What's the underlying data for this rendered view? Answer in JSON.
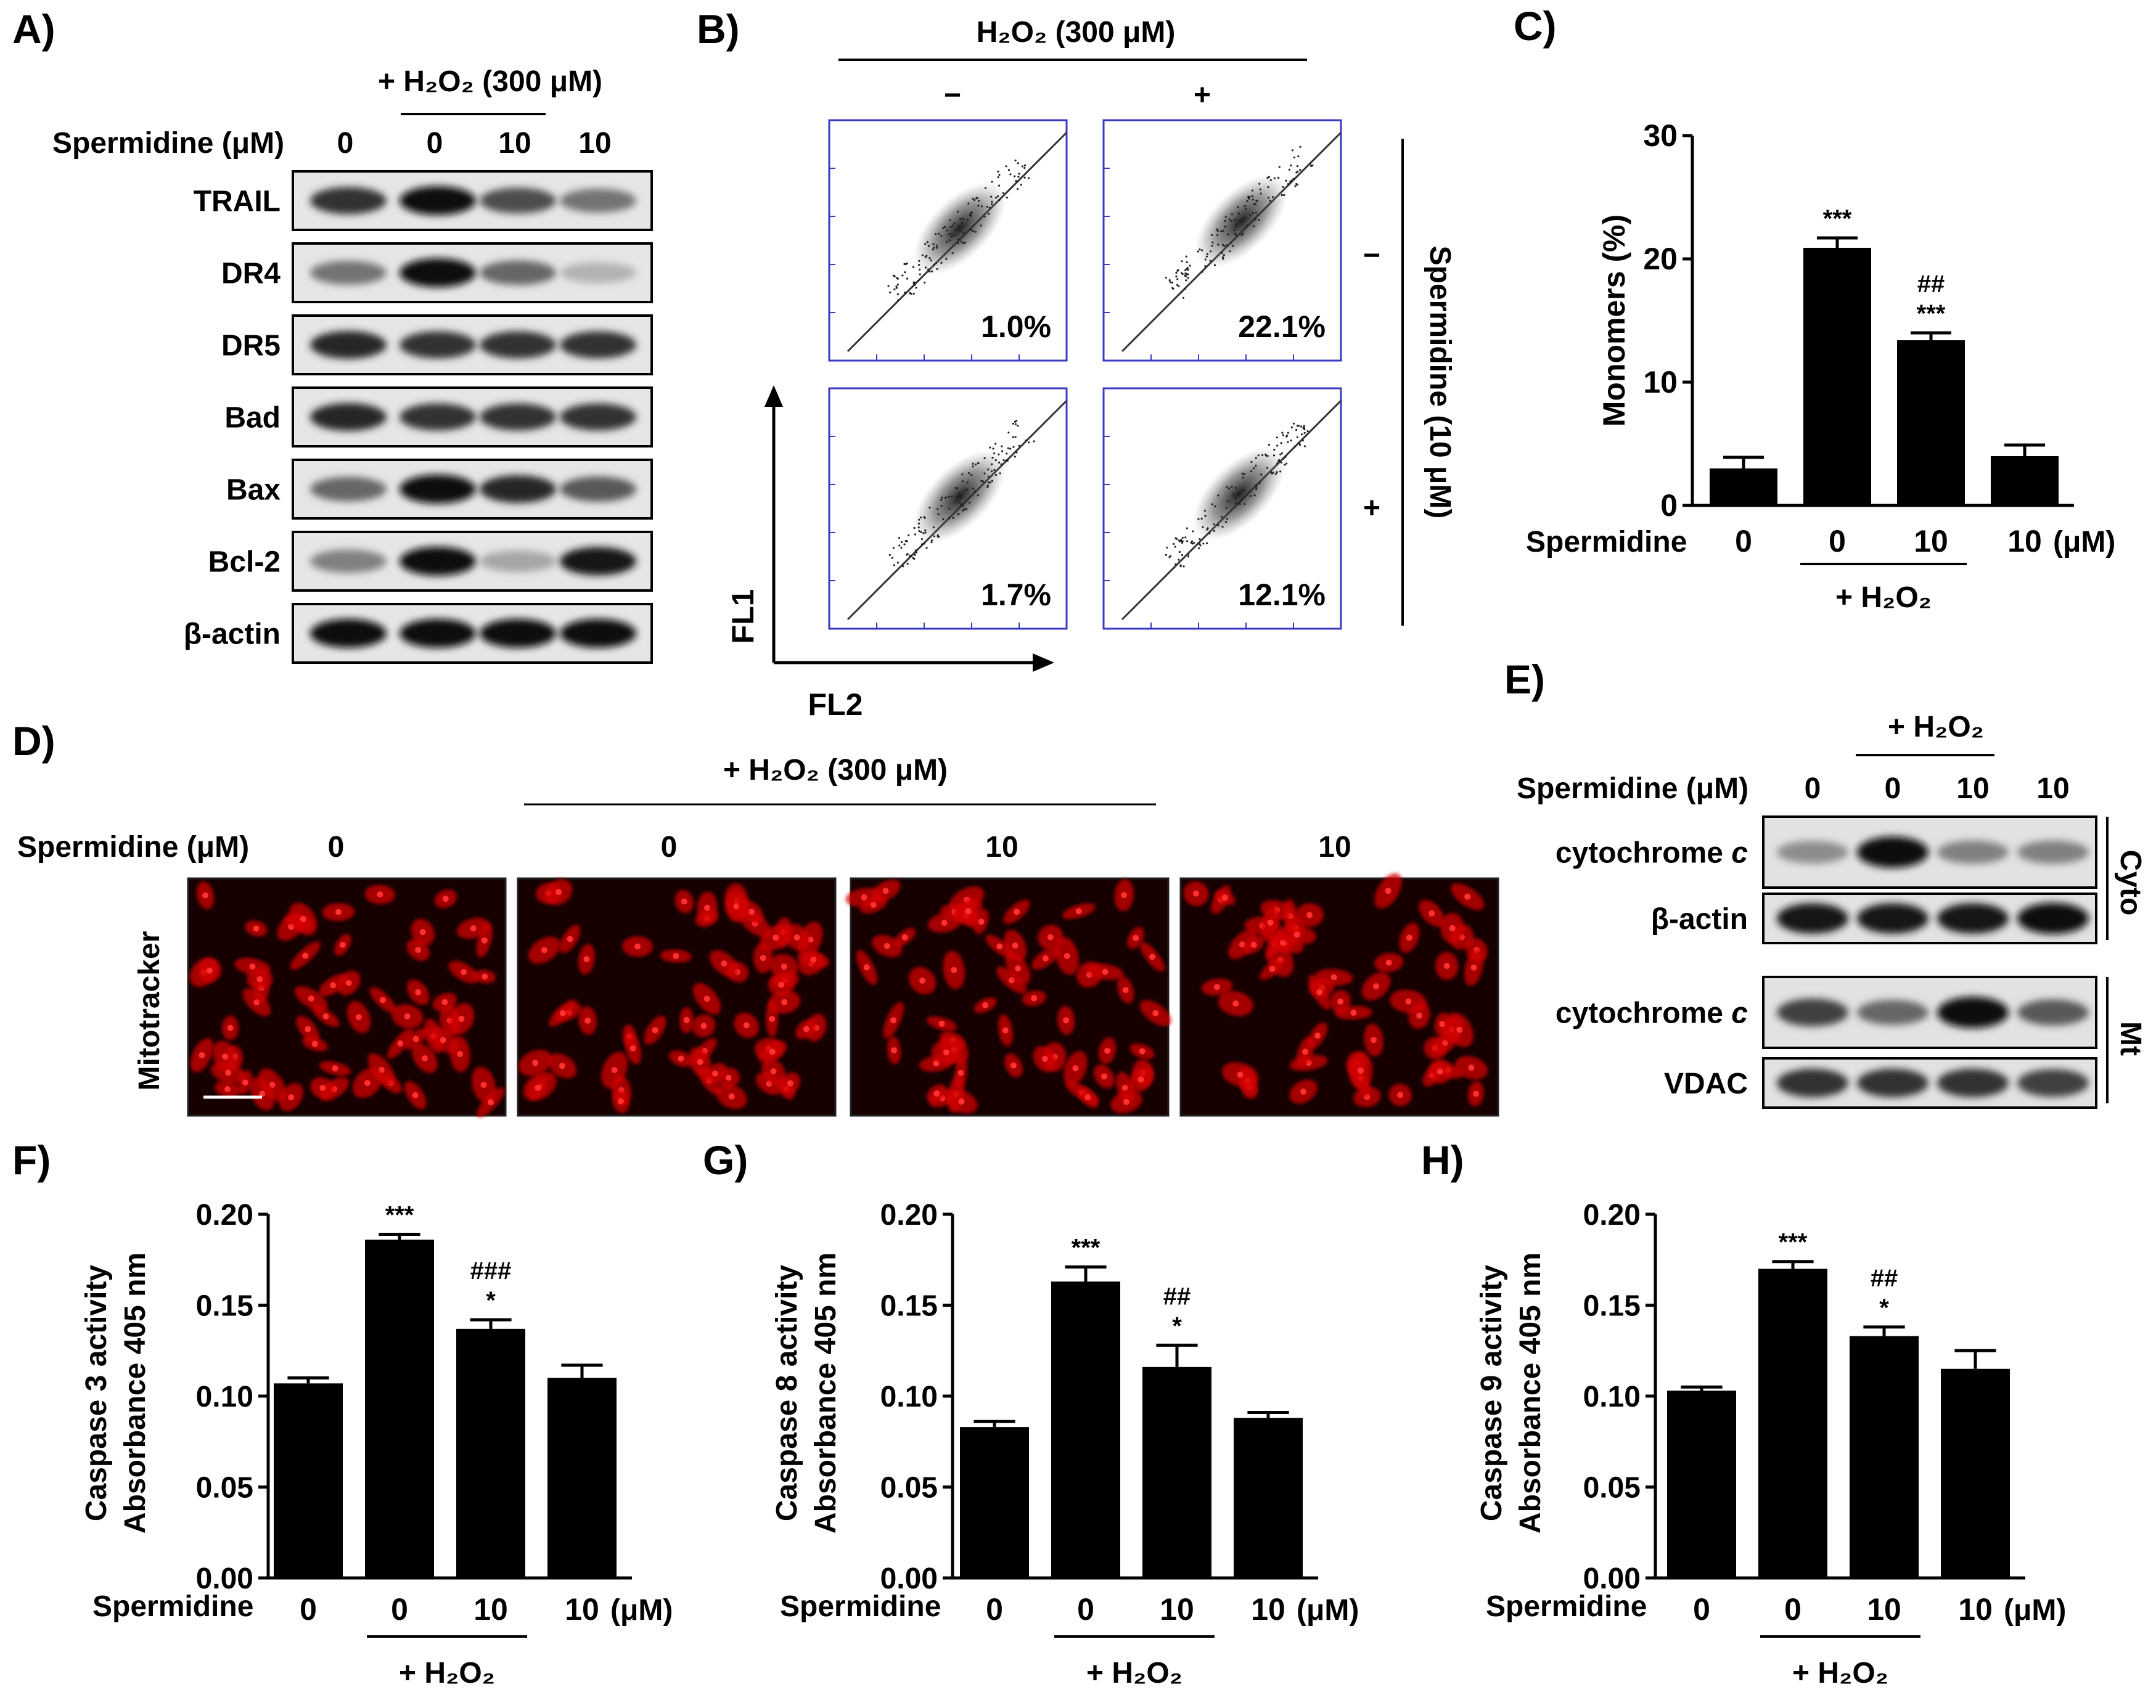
{
  "panels": {
    "A": "A)",
    "B": "B)",
    "C": "C)",
    "D": "D)",
    "E": "E)",
    "F": "F)",
    "G": "G)",
    "H": "H)"
  },
  "common": {
    "spermidine_uM_label": "Spermidine (μM)",
    "spermidine_label": "Spermidine",
    "h2o2_300": "+ H₂O₂ (300 μM)",
    "h2o2_300_plain": "H₂O₂ (300 μM)",
    "h2o2": "+ H₂O₂",
    "unit": "(μM)"
  },
  "panelA": {
    "lanes": [
      "0",
      "0",
      "10",
      "10"
    ],
    "bands": [
      {
        "label": "TRAIL",
        "intensity": [
          0.8,
          0.95,
          0.7,
          0.55
        ]
      },
      {
        "label": "DR4",
        "intensity": [
          0.55,
          0.95,
          0.6,
          0.3
        ]
      },
      {
        "label": "DR5",
        "intensity": [
          0.85,
          0.8,
          0.8,
          0.8
        ]
      },
      {
        "label": "Bad",
        "intensity": [
          0.85,
          0.8,
          0.8,
          0.8
        ]
      },
      {
        "label": "Bax",
        "intensity": [
          0.6,
          0.95,
          0.85,
          0.65
        ]
      },
      {
        "label": "Bcl-2",
        "intensity": [
          0.5,
          0.95,
          0.35,
          0.9
        ]
      },
      {
        "label": "β-actin",
        "intensity": [
          0.95,
          0.95,
          0.95,
          0.95
        ]
      }
    ]
  },
  "panelB": {
    "col_labels": [
      "−",
      "+"
    ],
    "row_labels": [
      "−",
      "+"
    ],
    "side_label": "Spermidine (10 μM)",
    "y_axis": "FL1",
    "x_axis": "FL2",
    "percentages": [
      "1.0%",
      "22.1%",
      "1.7%",
      "12.1%"
    ]
  },
  "panelD": {
    "lanes": [
      "0",
      "0",
      "10",
      "10"
    ],
    "stain_label": "Mitotracker"
  },
  "panelE": {
    "lanes": [
      "0",
      "0",
      "10",
      "10"
    ],
    "bands": [
      {
        "label": "cytochrome",
        "label_italic": "c",
        "intensity": [
          0.45,
          0.95,
          0.5,
          0.5
        ]
      },
      {
        "label": "β-actin",
        "label_italic": "",
        "intensity": [
          0.9,
          0.9,
          0.9,
          0.95
        ]
      },
      {
        "label": "cytochrome",
        "label_italic": "c",
        "intensity": [
          0.75,
          0.6,
          0.95,
          0.65
        ]
      },
      {
        "label": "VDAC",
        "label_italic": "",
        "intensity": [
          0.8,
          0.8,
          0.8,
          0.75
        ]
      }
    ],
    "fractions": [
      "Cyto",
      "Mt"
    ]
  },
  "chart_data": [
    {
      "id": "C",
      "type": "bar",
      "title": "",
      "categories": [
        "0",
        "0",
        "10",
        "10"
      ],
      "values": [
        3.0,
        20.9,
        13.4,
        4.0
      ],
      "errors": [
        0.9,
        0.8,
        0.6,
        0.9
      ],
      "annotations": [
        [],
        [
          "***"
        ],
        [
          "##",
          "***"
        ],
        []
      ],
      "ylabel": "Monomers (%)",
      "ylim": [
        0,
        30
      ],
      "ticks": [
        "0",
        "10",
        "20",
        "30"
      ]
    },
    {
      "id": "F",
      "type": "bar",
      "title": "",
      "categories": [
        "0",
        "0",
        "10",
        "10"
      ],
      "values": [
        0.107,
        0.186,
        0.137,
        0.11
      ],
      "errors": [
        0.003,
        0.003,
        0.005,
        0.007
      ],
      "annotations": [
        [],
        [
          "***"
        ],
        [
          "###",
          "*"
        ],
        []
      ],
      "ylabel": "Caspase 3 activity",
      "ylabel2": "Absorbance 405 nm",
      "ylim": [
        0,
        0.2
      ],
      "ticks": [
        "0.00",
        "0.05",
        "0.10",
        "0.15",
        "0.20"
      ]
    },
    {
      "id": "G",
      "type": "bar",
      "title": "",
      "categories": [
        "0",
        "0",
        "10",
        "10"
      ],
      "values": [
        0.083,
        0.163,
        0.116,
        0.088
      ],
      "errors": [
        0.003,
        0.008,
        0.012,
        0.003
      ],
      "annotations": [
        [],
        [
          "***"
        ],
        [
          "##",
          "*"
        ],
        []
      ],
      "ylabel": "Caspase 8 activity",
      "ylabel2": "Absorbance 405 nm",
      "ylim": [
        0,
        0.2
      ],
      "ticks": [
        "0.00",
        "0.05",
        "0.10",
        "0.15",
        "0.20"
      ]
    },
    {
      "id": "H",
      "type": "bar",
      "title": "",
      "categories": [
        "0",
        "0",
        "10",
        "10"
      ],
      "values": [
        0.103,
        0.17,
        0.133,
        0.115
      ],
      "errors": [
        0.002,
        0.004,
        0.005,
        0.01
      ],
      "annotations": [
        [],
        [
          "***"
        ],
        [
          "##",
          "*"
        ],
        []
      ],
      "ylabel": "Caspase 9 activity",
      "ylabel2": "Absorbance 405 nm",
      "ylim": [
        0,
        0.2
      ],
      "ticks": [
        "0.00",
        "0.05",
        "0.10",
        "0.15",
        "0.20"
      ]
    }
  ]
}
